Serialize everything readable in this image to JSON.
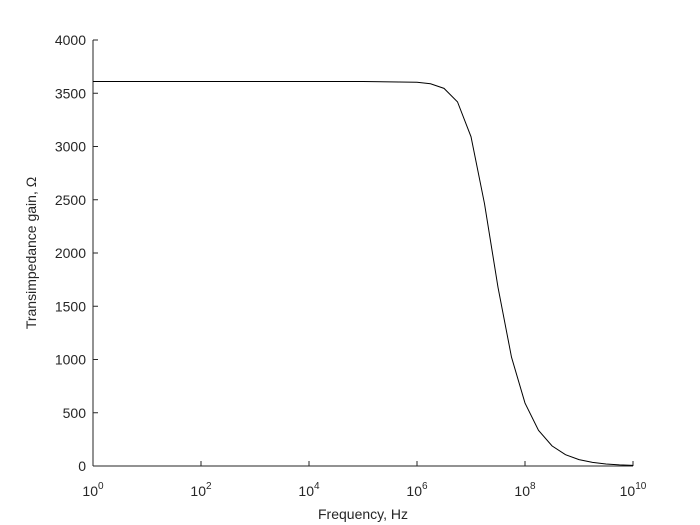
{
  "chart_data": {
    "type": "line",
    "x_label": "Frequency, Hz",
    "y_label": "Transimpedance gain, Ω",
    "x_scale": "log",
    "x": [
      1,
      10,
      100,
      1000,
      10000,
      100000,
      1000000,
      1778279,
      3162278,
      5623413,
      10000000,
      17782794,
      31622777,
      56234133,
      100000000,
      177827941,
      316227766,
      562341325,
      1000000000,
      1778279410,
      3162277660,
      5623413252,
      10000000000
    ],
    "series": [
      {
        "name": "gain",
        "color": "#000000",
        "values": [
          3610,
          3610,
          3610,
          3610,
          3610,
          3610,
          3603,
          3589,
          3546,
          3419,
          3092,
          2463,
          1678,
          1022,
          591,
          335,
          189,
          106.5,
          59.9,
          33.7,
          19.0,
          10.7,
          6.0
        ]
      }
    ],
    "xlim": [
      1,
      10000000000
    ],
    "xticks": [
      {
        "value": 1,
        "label": "10^0"
      },
      {
        "value": 100,
        "label": "10^2"
      },
      {
        "value": 10000,
        "label": "10^4"
      },
      {
        "value": 1000000,
        "label": "10^6"
      },
      {
        "value": 100000000,
        "label": "10^8"
      },
      {
        "value": 10000000000,
        "label": "10^10"
      }
    ],
    "ylim": [
      0,
      4000
    ],
    "yticks": [
      0,
      500,
      1000,
      1500,
      2000,
      2500,
      3000,
      3500,
      4000
    ]
  }
}
